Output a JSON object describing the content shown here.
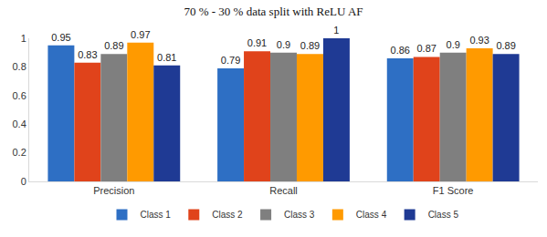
{
  "chart_data": {
    "type": "bar",
    "title": "70 % - 30 % data split with ReLU AF",
    "categories": [
      "Precision",
      "Recall",
      "F1 Score"
    ],
    "series": [
      {
        "name": "Class 1",
        "color": "#2e6fc4",
        "values": [
          0.95,
          0.79,
          0.86
        ]
      },
      {
        "name": "Class 2",
        "color": "#e0431b",
        "values": [
          0.83,
          0.91,
          0.87
        ]
      },
      {
        "name": "Class 3",
        "color": "#7f7f7f",
        "values": [
          0.89,
          0.9,
          0.9
        ]
      },
      {
        "name": "Class 4",
        "color": "#ff9a00",
        "values": [
          0.97,
          0.89,
          0.93
        ]
      },
      {
        "name": "Class 5",
        "color": "#1f3a94",
        "values": [
          0.81,
          1,
          0.89
        ]
      }
    ],
    "ylim": [
      0,
      1
    ],
    "yticks": [
      0,
      0.2,
      0.4,
      0.6,
      0.8,
      1
    ],
    "grid": false,
    "data_labels": true,
    "legend": "bottom"
  }
}
